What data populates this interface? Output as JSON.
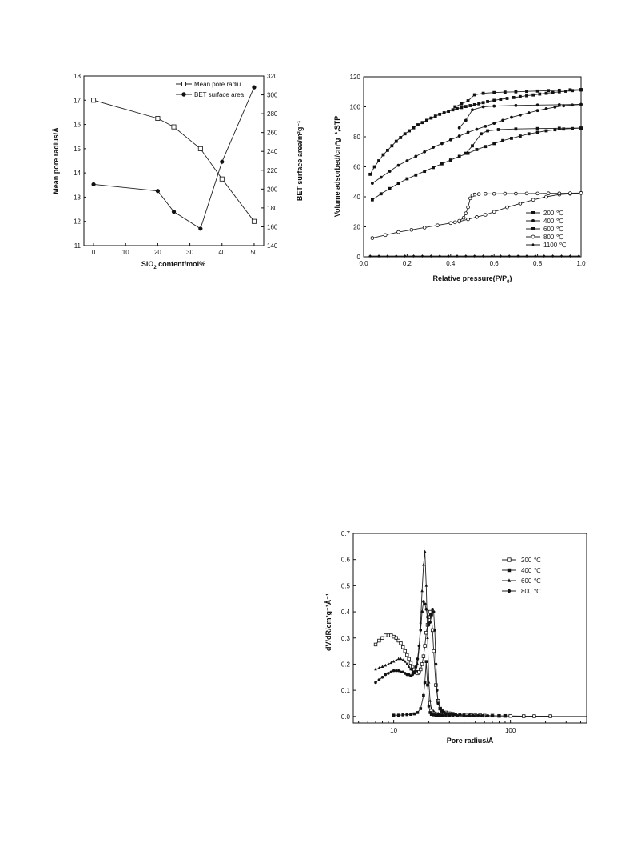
{
  "chart_data": [
    {
      "id": "fig1",
      "type": "line",
      "xlabel": "SiO2 content/mol%",
      "xlabel_parts": [
        "SiO",
        "2",
        " content/mol%"
      ],
      "ylabel": "Mean pore radius/Å",
      "y2label": "BET surface area/m²g⁻¹",
      "xlim": [
        -3,
        53
      ],
      "ylim": [
        11,
        18
      ],
      "y2lim": [
        140,
        320
      ],
      "x_ticks": [
        0,
        10,
        20,
        30,
        40,
        50
      ],
      "y_ticks": [
        11,
        12,
        13,
        14,
        15,
        16,
        17,
        18
      ],
      "y2_ticks": [
        140,
        160,
        180,
        200,
        220,
        240,
        260,
        280,
        300,
        320
      ],
      "legend_position": "top-right",
      "series": [
        {
          "name": "Mean pore radiu",
          "axis": "left",
          "marker": "open-square",
          "x": [
            0,
            20,
            25,
            33.3,
            40,
            50
          ],
          "y": [
            17.0,
            16.25,
            15.9,
            15.0,
            13.75,
            12.0
          ]
        },
        {
          "name": "BET surface area",
          "axis": "right",
          "marker": "filled-circle",
          "x": [
            0,
            20,
            25,
            33.3,
            40,
            50
          ],
          "y": [
            205,
            198,
            176,
            158,
            229,
            308
          ]
        }
      ]
    },
    {
      "id": "fig2",
      "type": "line",
      "xlabel": "Relative pressure(P/P0)",
      "xlabel_parts": [
        "Relative pressure(P/P",
        "0",
        ")"
      ],
      "ylabel": "Volume adsorbed/cm³g⁻¹,STP",
      "xlim": [
        0,
        1.0
      ],
      "ylim": [
        0,
        120
      ],
      "x_ticks": [
        "0.0",
        "0.2",
        "0.4",
        "0.6",
        "0.8",
        "1.0"
      ],
      "y_ticks": [
        0,
        20,
        40,
        60,
        80,
        100,
        120
      ],
      "legend_position": "bottom-right",
      "legend": [
        "200 ℃",
        "400 ℃",
        "600 ℃",
        "800 ℃",
        "1100 ℃"
      ],
      "series": [
        {
          "name": "200 ℃",
          "marker": "filled-square",
          "adsorption": {
            "x": [
              0.03,
              0.05,
              0.07,
              0.09,
              0.11,
              0.13,
              0.15,
              0.17,
              0.19,
              0.21,
              0.23,
              0.25,
              0.27,
              0.29,
              0.31,
              0.33,
              0.35,
              0.37,
              0.39,
              0.41,
              0.43,
              0.45,
              0.47,
              0.49,
              0.51,
              0.53,
              0.55,
              0.57,
              0.6,
              0.63,
              0.66,
              0.69,
              0.72,
              0.75,
              0.78,
              0.81,
              0.84,
              0.87,
              0.9,
              0.93,
              0.96,
              1.0
            ],
            "y": [
              55,
              60,
              64,
              68,
              71,
              74,
              77,
              79.5,
              82,
              84,
              86,
              88,
              89.5,
              91,
              92.5,
              93.8,
              95,
              96,
              97,
              98,
              98.8,
              99.5,
              100.2,
              100.8,
              101.4,
              102,
              102.8,
              103.5,
              104.3,
              105,
              105.6,
              106.2,
              106.8,
              107.4,
              107.9,
              108.5,
              109,
              109.5,
              110,
              110.4,
              110.8,
              111.2
            ]
          },
          "desorption": {
            "x": [
              1.0,
              0.95,
              0.9,
              0.85,
              0.8,
              0.75,
              0.7,
              0.65,
              0.6,
              0.55,
              0.51,
              0.48,
              0.45,
              0.42
            ],
            "y": [
              111.5,
              111.3,
              111,
              110.8,
              110.5,
              110.3,
              110,
              109.8,
              109.5,
              109,
              108,
              104,
              102,
              100
            ]
          }
        },
        {
          "name": "400 ℃",
          "marker": "filled-circle",
          "adsorption": {
            "x": [
              0.04,
              0.08,
              0.12,
              0.16,
              0.2,
              0.24,
              0.28,
              0.32,
              0.36,
              0.4,
              0.44,
              0.48,
              0.52,
              0.56,
              0.6,
              0.64,
              0.68,
              0.72,
              0.76,
              0.8,
              0.84,
              0.88,
              0.92,
              0.96,
              1.0
            ],
            "y": [
              49,
              53,
              57,
              61,
              64,
              67,
              70,
              73,
              75.5,
              78,
              80.5,
              83,
              85,
              87,
              89,
              91,
              93,
              94.5,
              96,
              97.5,
              98.7,
              99.8,
              100.7,
              101.2,
              101.6
            ]
          },
          "desorption": {
            "x": [
              1.0,
              0.9,
              0.8,
              0.7,
              0.6,
              0.55,
              0.5,
              0.47,
              0.44
            ],
            "y": [
              101.6,
              101.4,
              101.2,
              100.9,
              100.5,
              100,
              98,
              91,
              86
            ]
          }
        },
        {
          "name": "600 ℃",
          "marker": "filled-square",
          "adsorption": {
            "x": [
              0.04,
              0.08,
              0.12,
              0.16,
              0.2,
              0.24,
              0.28,
              0.32,
              0.36,
              0.4,
              0.44,
              0.48,
              0.52,
              0.56,
              0.6,
              0.64,
              0.68,
              0.72,
              0.76,
              0.8,
              0.84,
              0.88,
              0.92,
              0.96,
              1.0
            ],
            "y": [
              38,
              42,
              45.5,
              49,
              52,
              54.5,
              57,
              59.5,
              62,
              64.5,
              67,
              69,
              71.5,
              73.5,
              75.5,
              77.5,
              79,
              80.5,
              82,
              83,
              84,
              84.7,
              85.2,
              85.5,
              85.8
            ]
          },
          "desorption": {
            "x": [
              1.0,
              0.9,
              0.8,
              0.7,
              0.62,
              0.57,
              0.54,
              0.5,
              0.47
            ],
            "y": [
              85.8,
              85.7,
              85.5,
              85.2,
              84.8,
              84,
              82,
              74,
              69
            ]
          }
        },
        {
          "name": "800 ℃",
          "marker": "open-circle",
          "adsorption": {
            "x": [
              0.04,
              0.1,
              0.16,
              0.22,
              0.28,
              0.34,
              0.4,
              0.44,
              0.48,
              0.52,
              0.56,
              0.6,
              0.66,
              0.72,
              0.78,
              0.84,
              0.9,
              0.95,
              1.0
            ],
            "y": [
              12.5,
              14.5,
              16.5,
              18,
              19.5,
              21,
              22.5,
              23.5,
              25,
              26.5,
              28,
              30,
              33,
              35.5,
              38,
              40,
              41.5,
              42,
              42.5
            ]
          },
          "desorption": {
            "x": [
              1.0,
              0.95,
              0.9,
              0.85,
              0.8,
              0.75,
              0.7,
              0.65,
              0.6,
              0.56,
              0.53,
              0.51,
              0.5,
              0.49,
              0.48,
              0.47,
              0.46,
              0.44,
              0.42
            ],
            "y": [
              42.5,
              42.4,
              42.3,
              42.3,
              42.2,
              42.2,
              42.1,
              42.1,
              42,
              42,
              41.8,
              41.5,
              41,
              39,
              33,
              29,
              26,
              24,
              23
            ]
          }
        },
        {
          "name": "1100 ℃",
          "marker": "filled-diamond",
          "adsorption": {
            "x": [
              0.03,
              0.07,
              0.11,
              0.15,
              0.19,
              0.23,
              0.27,
              0.31,
              0.35,
              0.39,
              0.43,
              0.47,
              0.51,
              0.55,
              0.59,
              0.63,
              0.67,
              0.71,
              0.75,
              0.79,
              0.83,
              0.87,
              0.91,
              0.95,
              0.99
            ],
            "y": [
              0.5,
              0.5,
              0.5,
              0.5,
              0.5,
              0.5,
              0.5,
              0.5,
              0.5,
              0.5,
              0.5,
              0.5,
              0.5,
              0.5,
              0.5,
              0.5,
              0.5,
              0.5,
              0.5,
              0.5,
              0.5,
              0.5,
              0.5,
              0.5,
              0.5
            ]
          }
        }
      ]
    },
    {
      "id": "fig3",
      "type": "line",
      "xscale": "log",
      "xlabel": "Pore radius/Å",
      "ylabel": "dV/dR/cm³g⁻¹Å⁻¹",
      "xlim": [
        4.5,
        450
      ],
      "ylim": [
        -0.025,
        0.7
      ],
      "x_ticks": [
        10,
        100
      ],
      "y_ticks": [
        "0.0",
        "0.1",
        "0.2",
        "0.3",
        "0.4",
        "0.5",
        "0.6",
        "0.7"
      ],
      "legend_position": "top-right",
      "legend": [
        "200 ℃",
        "400 ℃",
        "600 ℃",
        "800 ℃"
      ],
      "series": [
        {
          "name": "200 ℃",
          "marker": "open-square",
          "x": [
            7,
            7.5,
            8,
            8.5,
            9,
            9.5,
            10,
            10.5,
            11,
            11.5,
            12,
            12.5,
            13,
            13.5,
            14,
            14.5,
            15,
            15.5,
            16,
            16.5,
            17,
            17.5,
            18,
            18.5,
            19,
            19.5,
            20,
            20.5,
            21,
            21.5,
            22,
            23,
            24,
            25,
            26,
            28,
            30,
            32,
            35,
            38,
            42,
            46,
            50,
            55,
            60,
            70,
            80,
            90,
            100,
            130,
            160,
            220
          ],
          "y": [
            0.275,
            0.29,
            0.3,
            0.31,
            0.31,
            0.31,
            0.305,
            0.3,
            0.29,
            0.28,
            0.265,
            0.25,
            0.235,
            0.22,
            0.205,
            0.19,
            0.18,
            0.17,
            0.165,
            0.17,
            0.18,
            0.2,
            0.23,
            0.27,
            0.32,
            0.35,
            0.38,
            0.4,
            0.39,
            0.33,
            0.25,
            0.12,
            0.06,
            0.03,
            0.02,
            0.015,
            0.012,
            0.01,
            0.008,
            0.007,
            0.006,
            0.005,
            0.004,
            0.004,
            0.003,
            0.003,
            0.002,
            0.002,
            0.002,
            0.001,
            0.001,
            0.001
          ]
        },
        {
          "name": "400 ℃",
          "marker": "filled-square",
          "x": [
            10,
            11,
            12,
            13,
            14,
            15,
            16,
            17,
            18,
            18.5,
            19,
            19.5,
            20,
            20.5,
            21,
            22,
            23,
            24,
            25,
            26,
            28,
            30,
            32,
            35,
            40,
            45
          ],
          "y": [
            0.005,
            0.005,
            0.006,
            0.007,
            0.008,
            0.01,
            0.015,
            0.03,
            0.08,
            0.13,
            0.21,
            0.12,
            0.04,
            0.015,
            0.008,
            0.006,
            0.005,
            0.004,
            0.004,
            0.004,
            0.003,
            0.003,
            0.003,
            0.002,
            0.002,
            0.002
          ]
        },
        {
          "name": "600 ℃",
          "marker": "filled-triangle",
          "x": [
            7,
            7.5,
            8,
            8.5,
            9,
            9.5,
            10,
            10.5,
            11,
            11.5,
            12,
            12.5,
            13,
            13.5,
            14,
            14.5,
            15,
            15.5,
            16,
            16.5,
            17,
            17.5,
            18,
            18.5,
            19,
            19.5,
            20,
            20.5,
            21,
            22,
            23,
            24,
            25,
            26,
            28,
            30,
            33,
            36,
            40,
            45,
            50,
            56,
            62,
            70
          ],
          "y": [
            0.18,
            0.185,
            0.19,
            0.195,
            0.2,
            0.205,
            0.21,
            0.215,
            0.22,
            0.22,
            0.215,
            0.21,
            0.2,
            0.19,
            0.18,
            0.17,
            0.165,
            0.175,
            0.2,
            0.26,
            0.36,
            0.48,
            0.58,
            0.63,
            0.5,
            0.3,
            0.13,
            0.06,
            0.03,
            0.02,
            0.015,
            0.012,
            0.01,
            0.009,
            0.008,
            0.007,
            0.006,
            0.005,
            0.004,
            0.004,
            0.003,
            0.003,
            0.002,
            0.002
          ]
        },
        {
          "name": "800 ℃",
          "marker": "filled-circle",
          "x": [
            7,
            7.5,
            8,
            8.5,
            9,
            9.5,
            10,
            10.5,
            11,
            11.5,
            12,
            12.5,
            13,
            13.5,
            14,
            14.5,
            15,
            15.5,
            16,
            16.5,
            17,
            17.5,
            18,
            18.5,
            19,
            19.5,
            20,
            20.5,
            21,
            21.5,
            22,
            22.5,
            23,
            23.5,
            24,
            25,
            26,
            27,
            28,
            30,
            32,
            34,
            37,
            40,
            44,
            48,
            53,
            58,
            64,
            70,
            80,
            90
          ],
          "y": [
            0.13,
            0.14,
            0.15,
            0.16,
            0.165,
            0.17,
            0.175,
            0.175,
            0.175,
            0.17,
            0.17,
            0.165,
            0.16,
            0.16,
            0.155,
            0.16,
            0.17,
            0.19,
            0.22,
            0.27,
            0.33,
            0.4,
            0.44,
            0.43,
            0.41,
            0.38,
            0.35,
            0.36,
            0.39,
            0.41,
            0.4,
            0.33,
            0.2,
            0.1,
            0.05,
            0.03,
            0.02,
            0.015,
            0.012,
            0.01,
            0.009,
            0.008,
            0.007,
            0.006,
            0.005,
            0.004,
            0.004,
            0.003,
            0.003,
            0.002,
            0.002,
            0.002
          ]
        }
      ]
    }
  ]
}
